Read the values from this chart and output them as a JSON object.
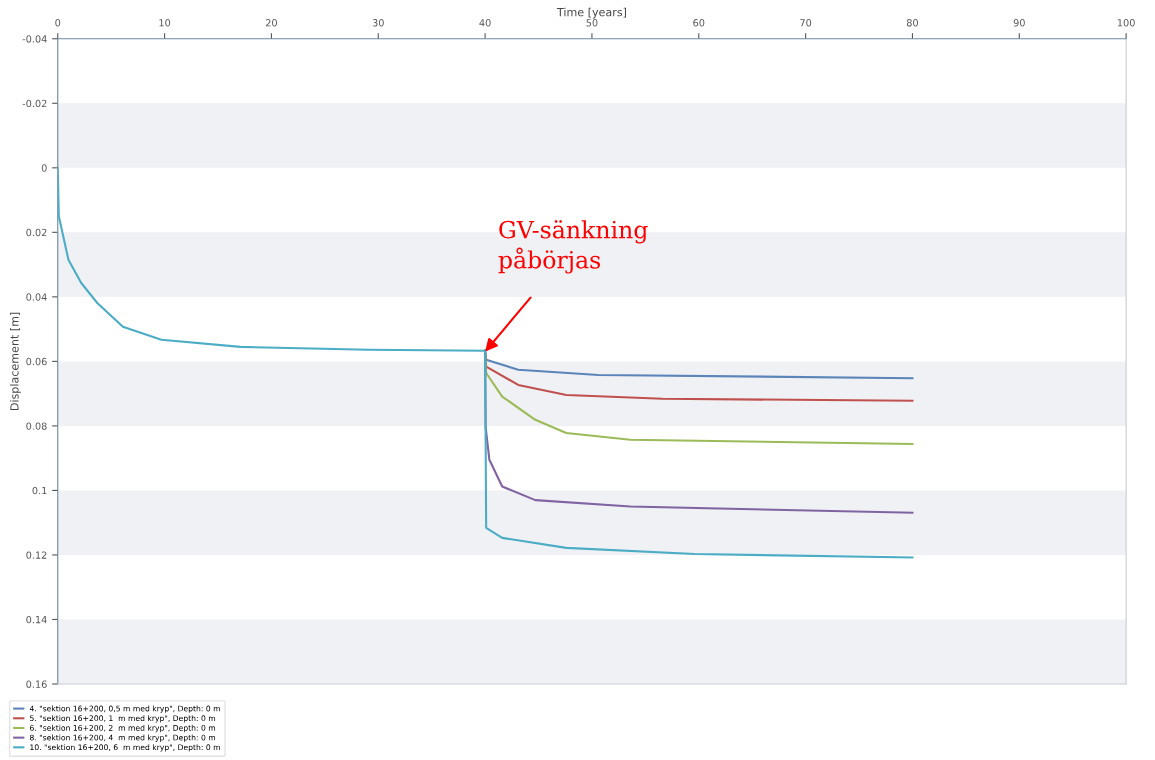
{
  "chart_data": {
    "type": "line",
    "xlabel": "Time [years]",
    "ylabel": "Displacement [m]",
    "xlim": [
      0,
      100
    ],
    "xticks": [
      0,
      10,
      20,
      30,
      40,
      50,
      60,
      70,
      80,
      90,
      100
    ],
    "ylim": [
      0.16,
      -0.04
    ],
    "yticks": [
      -0.04,
      -0.02,
      0,
      0.02,
      0.04,
      0.06,
      0.08,
      0.1,
      0.12,
      0.14,
      0.16
    ],
    "grid": false,
    "legend": "bottom left",
    "marker": "none",
    "line_style": "solid",
    "bands": [
      {
        "axis": "y",
        "from": -0.02,
        "to": 0,
        "color": "#f0f1f5"
      },
      {
        "axis": "y",
        "from": 0.02,
        "to": 0.04,
        "color": "#f0f1f5"
      },
      {
        "axis": "y",
        "from": 0.06,
        "to": 0.08,
        "color": "#f0f1f5"
      },
      {
        "axis": "y",
        "from": 0.1,
        "to": 0.12,
        "color": "#f0f1f5"
      },
      {
        "axis": "y",
        "from": 0.14,
        "to": 0.16,
        "color": "#f0f1f5"
      }
    ],
    "annotations": [
      {
        "text": "GV-sänkning\npåbörjas",
        "x": 40,
        "y": 0.057
      }
    ],
    "series": [
      {
        "name": "4. \"sektion 16+200, 0,5 m med kryp\", Depth: 0 m",
        "color": "#5b84b8",
        "x": [
          40.0,
          40.1,
          43.1,
          50.6,
          80
        ],
        "values": [
          0.0567,
          0.0595,
          0.0626,
          0.0642,
          0.0652
        ]
      },
      {
        "name": "5. \"sektion 16+200, 1  m med kryp\", Depth: 0 m",
        "color": "#c0504d",
        "x": [
          40.0,
          40.1,
          43.1,
          47.6,
          56.6,
          80
        ],
        "values": [
          0.0567,
          0.0616,
          0.0673,
          0.0704,
          0.0716,
          0.0722
        ]
      },
      {
        "name": "6. \"sektion 16+200, 2  m med kryp\", Depth: 0 m",
        "color": "#9bbb59",
        "x": [
          40.0,
          40.1,
          41.6,
          44.7,
          47.6,
          53.6,
          80
        ],
        "values": [
          0.0567,
          0.0636,
          0.0709,
          0.0781,
          0.0822,
          0.0843,
          0.0856
        ]
      },
      {
        "name": "8. \"sektion 16+200, 4  m med kryp\", Depth: 0 m",
        "color": "#8064a2",
        "x": [
          40.0,
          40.05,
          40.4,
          41.6,
          44.7,
          53.6,
          80
        ],
        "values": [
          0.0567,
          0.0803,
          0.0905,
          0.0988,
          0.103,
          0.105,
          0.1069
        ]
      },
      {
        "name": "10. \"sektion 16+200, 6  m med kryp\", Depth: 0 m",
        "color": "#4bacc6",
        "x": [
          0,
          0.1,
          1.0,
          2.2,
          3.7,
          6.1,
          9.7,
          17.1,
          29.1,
          40.0,
          40.1,
          41.6,
          47.6,
          59.6,
          80
        ],
        "values": [
          0.0,
          0.015,
          0.0285,
          0.0357,
          0.0419,
          0.0493,
          0.0533,
          0.0555,
          0.0564,
          0.0567,
          0.1116,
          0.1147,
          0.1178,
          0.1197,
          0.1208
        ]
      }
    ]
  }
}
